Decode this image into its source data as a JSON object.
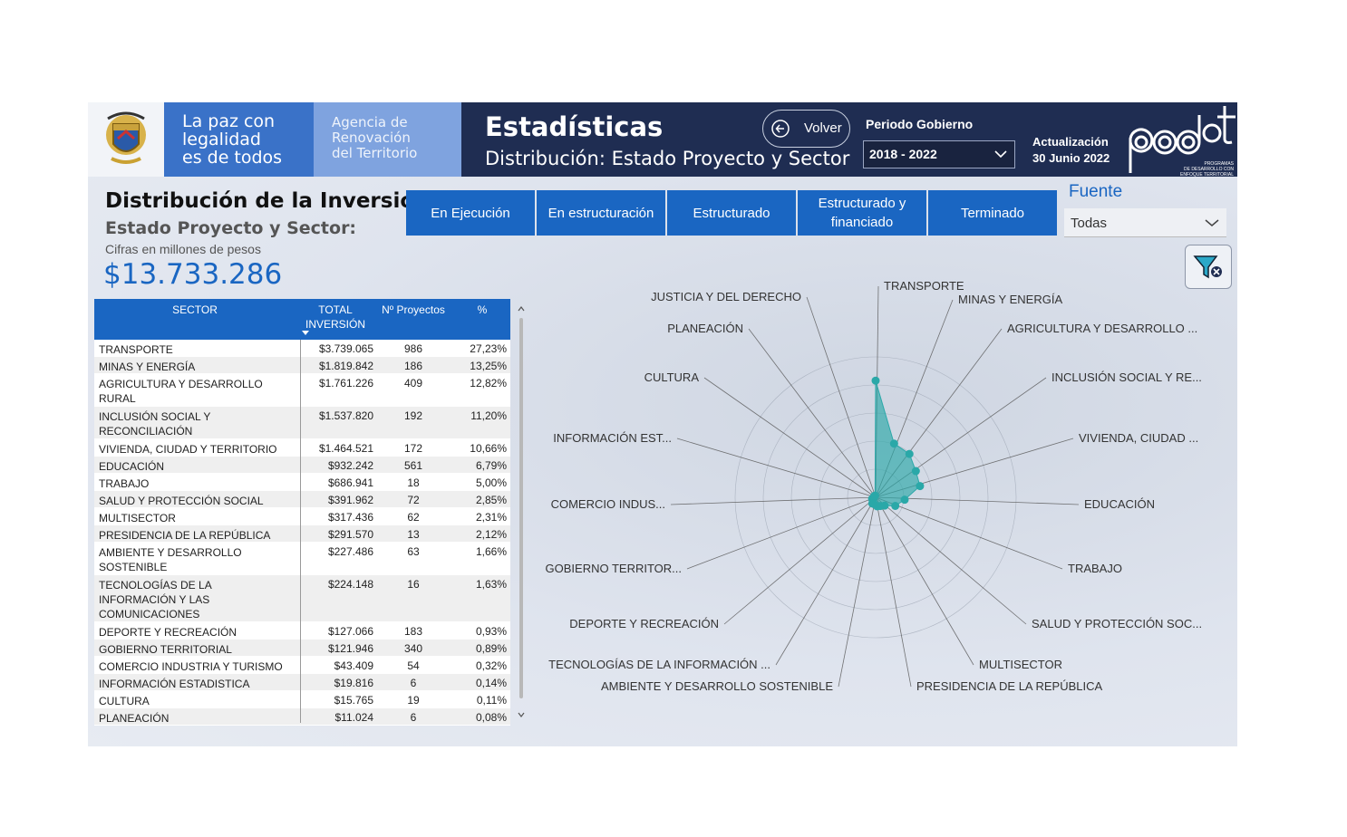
{
  "header": {
    "slogan": [
      "La paz con",
      "legalidad",
      "es de todos"
    ],
    "agency": [
      "Agencia de",
      "Renovación",
      "del Territorio"
    ],
    "title": "Estadísticas",
    "subtitle": "Distribución: Estado Proyecto y Sector",
    "back_label": "Volver",
    "periodo_label": "Periodo Gobierno",
    "periodo_value": "2018 - 2022",
    "actualizacion_label": "Actualización",
    "actualizacion_date": "30 Junio 2022",
    "pdet_logo_text": "PROGRAMAS DE DESARROLLO CON ENFOQUE TERRITORIAL",
    "accent": "#1a66c2",
    "navy": "#1f2d52"
  },
  "summary": {
    "heading": "Distribución de la Inversión",
    "subheading": "Estado Proyecto y Sector:",
    "note": "Cifras en millones de pesos",
    "total": "$13.733.286"
  },
  "status_buttons": [
    "En Ejecución",
    "En estructuración",
    "Estructurado",
    "Estructurado y financiado",
    "Terminado"
  ],
  "fuente": {
    "label": "Fuente",
    "value": "Todas"
  },
  "table": {
    "headers": {
      "sector": "SECTOR",
      "total": "TOTAL INVERSIÓN",
      "proyectos": "Nº Proyectos",
      "pct": "%"
    },
    "rows": [
      {
        "sector": "TRANSPORTE",
        "total": "$3.739.065",
        "proyectos": "986",
        "pct": "27,23%",
        "lines": 1
      },
      {
        "sector": "MINAS Y ENERGÍA",
        "total": "$1.819.842",
        "proyectos": "186",
        "pct": "13,25%",
        "lines": 1
      },
      {
        "sector": "AGRICULTURA Y DESARROLLO RURAL",
        "total": "$1.761.226",
        "proyectos": "409",
        "pct": "12,82%",
        "lines": 2
      },
      {
        "sector": "INCLUSIÓN SOCIAL Y RECONCILIACIÓN",
        "total": "$1.537.820",
        "proyectos": "192",
        "pct": "11,20%",
        "lines": 2
      },
      {
        "sector": "VIVIENDA, CIUDAD Y TERRITORIO",
        "total": "$1.464.521",
        "proyectos": "172",
        "pct": "10,66%",
        "lines": 1
      },
      {
        "sector": "EDUCACIÓN",
        "total": "$932.242",
        "proyectos": "561",
        "pct": "6,79%",
        "lines": 1
      },
      {
        "sector": "TRABAJO",
        "total": "$686.941",
        "proyectos": "18",
        "pct": "5,00%",
        "lines": 1
      },
      {
        "sector": "SALUD Y PROTECCIÓN SOCIAL",
        "total": "$391.962",
        "proyectos": "72",
        "pct": "2,85%",
        "lines": 1
      },
      {
        "sector": "MULTISECTOR",
        "total": "$317.436",
        "proyectos": "62",
        "pct": "2,31%",
        "lines": 1
      },
      {
        "sector": "PRESIDENCIA DE LA REPÚBLICA",
        "total": "$291.570",
        "proyectos": "13",
        "pct": "2,12%",
        "lines": 1
      },
      {
        "sector": "AMBIENTE Y DESARROLLO SOSTENIBLE",
        "total": "$227.486",
        "proyectos": "63",
        "pct": "1,66%",
        "lines": 2
      },
      {
        "sector": "TECNOLOGÍAS DE LA INFORMACIÓN Y LAS COMUNICACIONES",
        "total": "$224.148",
        "proyectos": "16",
        "pct": "1,63%",
        "lines": 3
      },
      {
        "sector": "DEPORTE Y RECREACIÓN",
        "total": "$127.066",
        "proyectos": "183",
        "pct": "0,93%",
        "lines": 1
      },
      {
        "sector": "GOBIERNO TERRITORIAL",
        "total": "$121.946",
        "proyectos": "340",
        "pct": "0,89%",
        "lines": 1
      },
      {
        "sector": "COMERCIO INDUSTRIA Y TURISMO",
        "total": "$43.409",
        "proyectos": "54",
        "pct": "0,32%",
        "lines": 1
      },
      {
        "sector": "INFORMACIÓN ESTADISTICA",
        "total": "$19.816",
        "proyectos": "6",
        "pct": "0,14%",
        "lines": 1
      },
      {
        "sector": "CULTURA",
        "total": "$15.765",
        "proyectos": "19",
        "pct": "0,11%",
        "lines": 1
      },
      {
        "sector": "PLANEACIÓN",
        "total": "$11.024",
        "proyectos": "6",
        "pct": "0,08%",
        "lines": 1
      }
    ]
  },
  "chart_data": {
    "type": "radar",
    "labels": [
      "TRANSPORTE",
      "MINAS Y ENERGÍA",
      "AGRICULTURA Y DESARROLLO ...",
      "INCLUSIÓN SOCIAL Y RE...",
      "VIVIENDA, CIUDAD ...",
      "EDUCACIÓN",
      "TRABAJO",
      "SALUD Y PROTECCIÓN SOC...",
      "MULTISECTOR",
      "PRESIDENCIA DE LA REPÚBLICA",
      "AMBIENTE Y DESARROLLO SOSTENIBLE",
      "TECNOLOGÍAS DE LA INFORMACIÓN ...",
      "DEPORTE Y RECREACIÓN",
      "GOBIERNO TERRITOR...",
      "COMERCIO INDUS...",
      "INFORMACIÓN EST...",
      "CULTURA",
      "PLANEACIÓN",
      "JUSTICIA Y DEL DERECHO"
    ],
    "values": [
      3739065,
      1819842,
      1761226,
      1537820,
      1464521,
      932242,
      686941,
      391962,
      317436,
      291570,
      227486,
      224148,
      127066,
      121946,
      43409,
      19816,
      15765,
      11024,
      0
    ],
    "max": 4500000,
    "fill_color": "#2aa8a8"
  }
}
